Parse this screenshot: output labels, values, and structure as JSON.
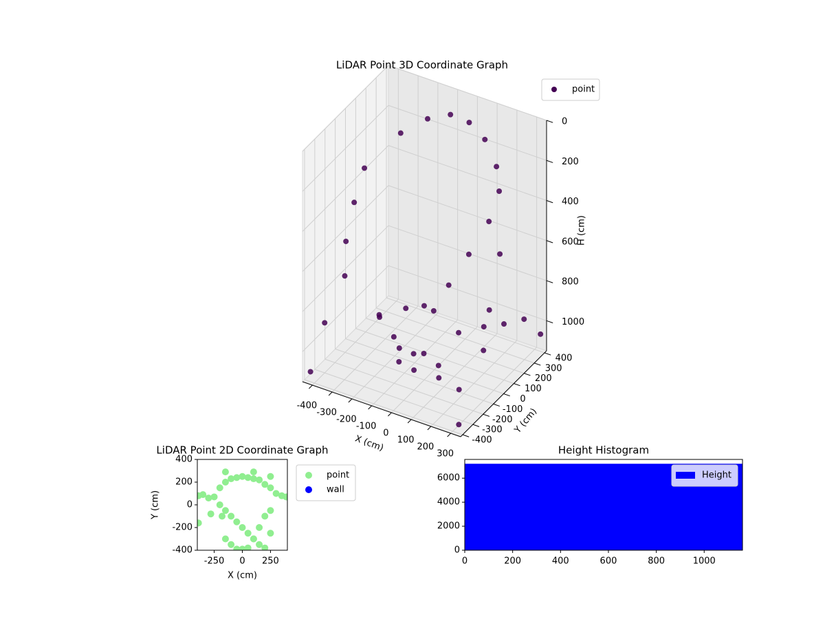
{
  "chart_data": [
    {
      "type": "scatter3d",
      "title": "LiDAR Point 3D Coordinate Graph",
      "xlabel": "X (cm)",
      "ylabel": "Y (cm)",
      "zlabel": "H (cm)",
      "name": "point",
      "color": "#440154",
      "legend": "upper right",
      "xlim": [
        -450,
        350
      ],
      "ylim": [
        -420,
        420
      ],
      "zlim": [
        0,
        1150
      ],
      "z_inverted": true,
      "xticks": [
        -400,
        -300,
        -200,
        -100,
        0,
        100,
        200,
        300
      ],
      "yticks": [
        -400,
        -300,
        -200,
        -100,
        0,
        100,
        200,
        300,
        400
      ],
      "zticks": [
        0,
        200,
        400,
        600,
        800,
        1000
      ],
      "x": [
        -300,
        -200,
        -100,
        0,
        100,
        200,
        250,
        -380,
        -380,
        -370,
        -350,
        250,
        200,
        150,
        100,
        -150,
        -50,
        50,
        150,
        -100,
        0,
        100,
        -200,
        200,
        0,
        -50,
        50,
        250,
        300,
        350,
        200,
        300,
        -420,
        -400,
        320,
        340,
        -300,
        150,
        280
      ],
      "y": [
        250,
        320,
        350,
        340,
        300,
        220,
        150,
        50,
        -50,
        -150,
        -200,
        50,
        -50,
        -150,
        -200,
        -250,
        -300,
        -300,
        -250,
        -150,
        -200,
        -150,
        -150,
        -150,
        -100,
        -250,
        -200,
        0,
        100,
        200,
        150,
        -100,
        -400,
        -300,
        -380,
        380,
        300,
        350,
        -300
      ],
      "h": [
        200,
        130,
        90,
        90,
        120,
        180,
        250,
        300,
        420,
        560,
        700,
        350,
        480,
        600,
        720,
        800,
        850,
        900,
        950,
        1000,
        1050,
        1080,
        880,
        820,
        780,
        1000,
        950,
        850,
        870,
        880,
        860,
        900,
        1100,
        900,
        1120,
        1050,
        1100,
        700,
        1000
      ]
    },
    {
      "type": "scatter",
      "title": "LiDAR Point 2D Coordinate Graph",
      "xlabel": "X (cm)",
      "ylabel": "Y (cm)",
      "xlim": [
        -400,
        400
      ],
      "ylim": [
        -400,
        400
      ],
      "xticks": [
        -250,
        0,
        250
      ],
      "yticks": [
        -400,
        -200,
        0,
        200,
        400
      ],
      "legend": "outside-right",
      "series": [
        {
          "name": "point",
          "color": "#90ee90",
          "x": [
            -390,
            -350,
            -300,
            -250,
            -200,
            -150,
            -100,
            -50,
            0,
            50,
            100,
            150,
            200,
            250,
            300,
            350,
            390,
            -200,
            -150,
            -100,
            -50,
            0,
            50,
            100,
            150,
            200,
            250,
            -150,
            -100,
            -50,
            0,
            50,
            100,
            150,
            200,
            250,
            -180,
            -280,
            -390,
            100,
            -150,
            250
          ],
          "y": [
            80,
            90,
            60,
            70,
            150,
            200,
            230,
            240,
            250,
            240,
            230,
            220,
            180,
            150,
            100,
            80,
            70,
            0,
            -50,
            -100,
            -150,
            -200,
            -250,
            -300,
            -350,
            -380,
            -250,
            -300,
            -350,
            -390,
            -390,
            -380,
            -300,
            -200,
            -100,
            -50,
            -100,
            -80,
            -160,
            290,
            290,
            250
          ]
        },
        {
          "name": "wall",
          "color": "#0000ff",
          "x": [],
          "y": []
        }
      ]
    },
    {
      "type": "hist",
      "title": "Height Histogram",
      "name": "Height",
      "color": "#0000ff",
      "legend": "upper right",
      "bins": [
        0,
        1160
      ],
      "counts": [
        7200
      ],
      "xlim": [
        0,
        1160
      ],
      "ylim": [
        0,
        7560
      ],
      "xticks": [
        0,
        200,
        400,
        600,
        800,
        1000
      ],
      "yticks": [
        0,
        2000,
        4000,
        6000
      ]
    }
  ]
}
